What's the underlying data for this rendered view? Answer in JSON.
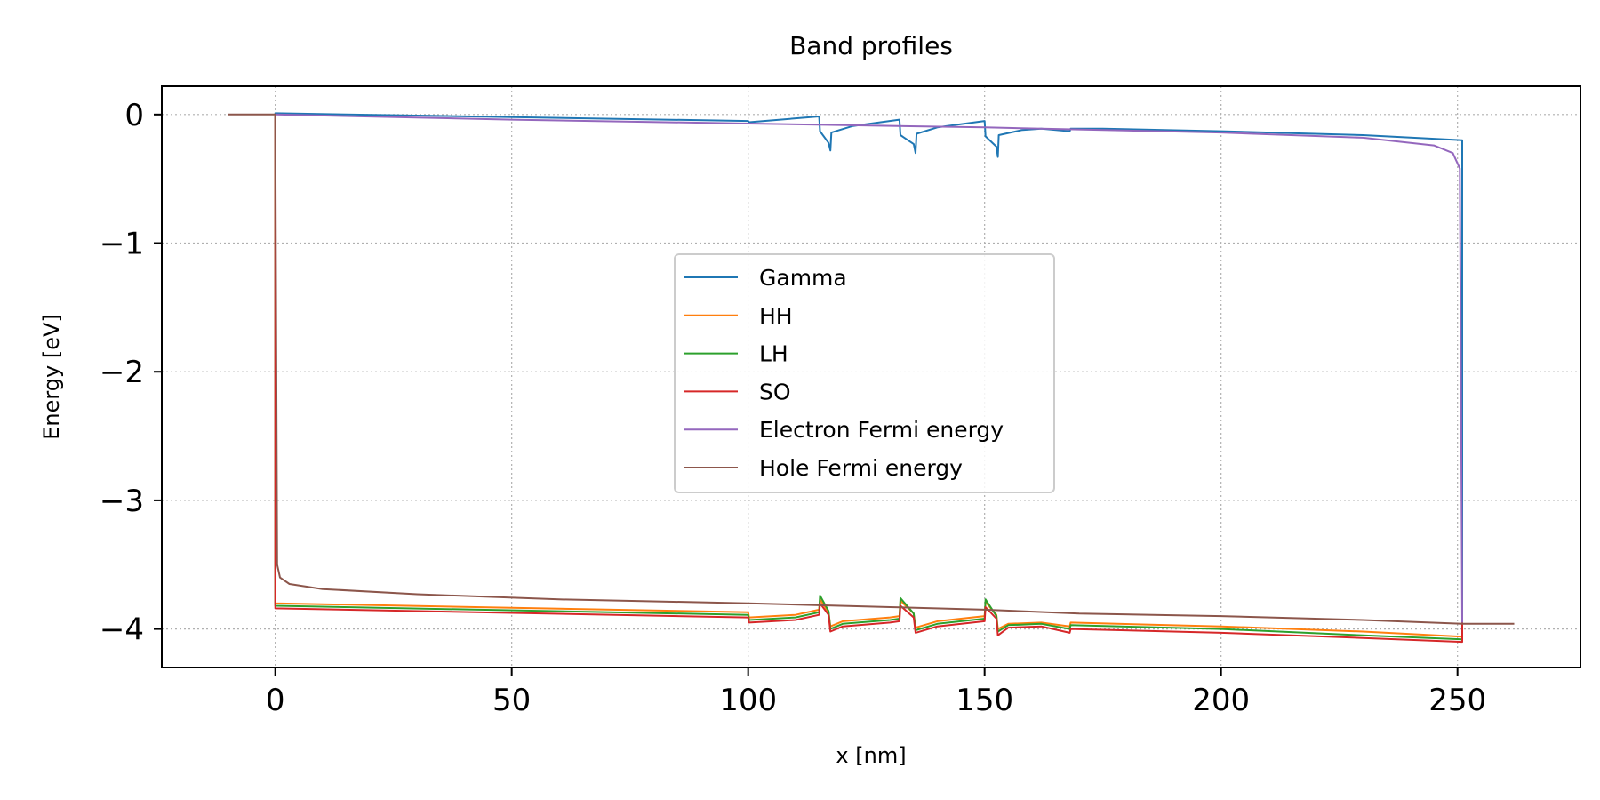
{
  "chart_data": {
    "type": "line",
    "title": "Band profiles",
    "xlabel": "x [nm]",
    "ylabel": "Energy [eV]",
    "xlim": [
      -24,
      276
    ],
    "ylim": [
      -4.3,
      0.22
    ],
    "xticks": [
      0,
      50,
      100,
      150,
      200,
      250
    ],
    "yticks": [
      0,
      -1,
      -2,
      -3,
      -4
    ],
    "xtick_labels": [
      "0",
      "50",
      "100",
      "150",
      "200",
      "250"
    ],
    "ytick_labels": [
      "0",
      "−1",
      "−2",
      "−3",
      "−4"
    ],
    "grid": true,
    "legend_position": "center",
    "series": [
      {
        "name": "Gamma",
        "color": "#1f77b4",
        "points": [
          [
            0,
            -0.001
          ],
          [
            0,
            0.01
          ],
          [
            100,
            -0.05
          ],
          [
            100.2,
            -0.06
          ],
          [
            115,
            -0.015
          ],
          [
            115.2,
            -0.13
          ],
          [
            117,
            -0.22
          ],
          [
            117.4,
            -0.28
          ],
          [
            117.6,
            -0.14
          ],
          [
            122,
            -0.09
          ],
          [
            132,
            -0.04
          ],
          [
            132.2,
            -0.16
          ],
          [
            135,
            -0.23
          ],
          [
            135.4,
            -0.3
          ],
          [
            135.6,
            -0.15
          ],
          [
            140,
            -0.1
          ],
          [
            150,
            -0.05
          ],
          [
            150.2,
            -0.17
          ],
          [
            152.5,
            -0.25
          ],
          [
            152.8,
            -0.33
          ],
          [
            153,
            -0.16
          ],
          [
            158,
            -0.12
          ],
          [
            162,
            -0.11
          ],
          [
            168,
            -0.13
          ],
          [
            168.2,
            -0.11
          ],
          [
            175,
            -0.11
          ],
          [
            200,
            -0.13
          ],
          [
            230,
            -0.16
          ],
          [
            251,
            -0.2
          ],
          [
            251,
            -3.95
          ]
        ]
      },
      {
        "name": "HH",
        "color": "#ff7f0e",
        "points": [
          [
            0,
            -0.01
          ],
          [
            0,
            -3.8
          ],
          [
            100,
            -3.87
          ],
          [
            100.2,
            -3.91
          ],
          [
            110,
            -3.89
          ],
          [
            115,
            -3.85
          ],
          [
            115.2,
            -3.77
          ],
          [
            117,
            -3.87
          ],
          [
            117.4,
            -3.98
          ],
          [
            120,
            -3.94
          ],
          [
            130,
            -3.91
          ],
          [
            132,
            -3.9
          ],
          [
            132.2,
            -3.78
          ],
          [
            135,
            -3.88
          ],
          [
            135.4,
            -3.99
          ],
          [
            140,
            -3.94
          ],
          [
            150,
            -3.9
          ],
          [
            150.2,
            -3.79
          ],
          [
            152.5,
            -3.89
          ],
          [
            152.8,
            -4.0
          ],
          [
            155,
            -3.96
          ],
          [
            162,
            -3.95
          ],
          [
            168,
            -3.98
          ],
          [
            168.2,
            -3.95
          ],
          [
            200,
            -3.98
          ],
          [
            230,
            -4.02
          ],
          [
            251,
            -4.06
          ],
          [
            251,
            -3.95
          ]
        ]
      },
      {
        "name": "LH",
        "color": "#2ca02c",
        "points": [
          [
            0,
            -0.01
          ],
          [
            0,
            -3.82
          ],
          [
            100,
            -3.89
          ],
          [
            100.2,
            -3.93
          ],
          [
            110,
            -3.91
          ],
          [
            115,
            -3.87
          ],
          [
            115.2,
            -3.74
          ],
          [
            117,
            -3.86
          ],
          [
            117.4,
            -4.0
          ],
          [
            120,
            -3.96
          ],
          [
            130,
            -3.93
          ],
          [
            132,
            -3.92
          ],
          [
            132.2,
            -3.76
          ],
          [
            135,
            -3.88
          ],
          [
            135.4,
            -4.01
          ],
          [
            140,
            -3.96
          ],
          [
            150,
            -3.92
          ],
          [
            150.2,
            -3.77
          ],
          [
            152.5,
            -3.9
          ],
          [
            152.8,
            -4.02
          ],
          [
            155,
            -3.97
          ],
          [
            162,
            -3.96
          ],
          [
            168,
            -4.0
          ],
          [
            168.2,
            -3.97
          ],
          [
            200,
            -4.0
          ],
          [
            230,
            -4.05
          ],
          [
            251,
            -4.08
          ],
          [
            251,
            -3.95
          ]
        ]
      },
      {
        "name": "SO",
        "color": "#d62728",
        "points": [
          [
            0,
            -0.01
          ],
          [
            0,
            -3.84
          ],
          [
            100,
            -3.91
          ],
          [
            100.2,
            -3.95
          ],
          [
            110,
            -3.93
          ],
          [
            115,
            -3.89
          ],
          [
            115.2,
            -3.8
          ],
          [
            117,
            -3.89
          ],
          [
            117.4,
            -4.02
          ],
          [
            120,
            -3.98
          ],
          [
            130,
            -3.95
          ],
          [
            132,
            -3.94
          ],
          [
            132.2,
            -3.82
          ],
          [
            135,
            -3.91
          ],
          [
            135.4,
            -4.03
          ],
          [
            140,
            -3.98
          ],
          [
            150,
            -3.94
          ],
          [
            150.2,
            -3.83
          ],
          [
            152.5,
            -3.92
          ],
          [
            152.8,
            -4.05
          ],
          [
            155,
            -3.99
          ],
          [
            162,
            -3.98
          ],
          [
            168,
            -4.03
          ],
          [
            168.2,
            -4.0
          ],
          [
            200,
            -4.03
          ],
          [
            230,
            -4.07
          ],
          [
            251,
            -4.1
          ],
          [
            251,
            -3.95
          ]
        ]
      },
      {
        "name": "Electron Fermi energy",
        "color": "#9467bd",
        "points": [
          [
            0,
            0.0
          ],
          [
            50,
            -0.04
          ],
          [
            100,
            -0.07
          ],
          [
            150,
            -0.1
          ],
          [
            200,
            -0.14
          ],
          [
            230,
            -0.18
          ],
          [
            245,
            -0.24
          ],
          [
            249,
            -0.3
          ],
          [
            250.5,
            -0.42
          ],
          [
            251,
            -3.95
          ]
        ]
      },
      {
        "name": "Hole Fermi energy",
        "color": "#8c564b",
        "points": [
          [
            -10,
            0.0
          ],
          [
            -0.1,
            0.0
          ],
          [
            0,
            0.0
          ],
          [
            0.4,
            -3.5
          ],
          [
            1,
            -3.6
          ],
          [
            3,
            -3.65
          ],
          [
            10,
            -3.69
          ],
          [
            30,
            -3.73
          ],
          [
            60,
            -3.77
          ],
          [
            100,
            -3.8
          ],
          [
            130,
            -3.83
          ],
          [
            150,
            -3.85
          ],
          [
            170,
            -3.88
          ],
          [
            200,
            -3.9
          ],
          [
            230,
            -3.93
          ],
          [
            251,
            -3.96
          ],
          [
            262,
            -3.96
          ]
        ]
      }
    ]
  }
}
